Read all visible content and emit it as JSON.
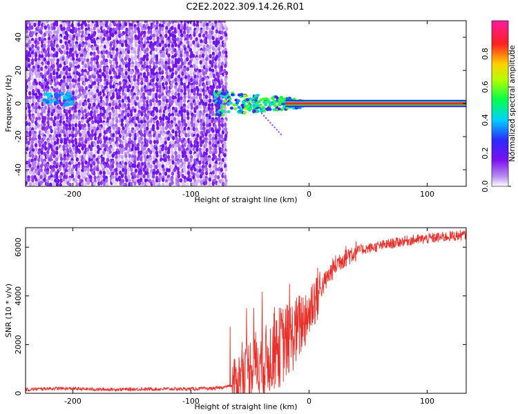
{
  "title": "C2E2.2022.309.14.26.R01",
  "chart_data": [
    {
      "type": "heatmap",
      "xlabel": "Height of straight line (km)",
      "ylabel": "Frequency (Hz)",
      "xlim": [
        -240,
        133
      ],
      "ylim": [
        -50,
        50
      ],
      "xticks": [
        -200,
        -100,
        0,
        100
      ],
      "yticks": [
        -40,
        -20,
        0,
        20,
        40
      ],
      "colorbar": {
        "label": "Normalized spectral amplitude",
        "range": [
          0,
          1
        ],
        "ticks": [
          "0.0",
          "0.2",
          "0.4",
          "0.6",
          "0.8"
        ],
        "colormap": "rainbow (white→purple→blue→cyan→green→yellow→red→magenta)"
      },
      "regions": [
        {
          "desc": "noise",
          "x_range": [
            -240,
            -70
          ],
          "freq_range": [
            -50,
            50
          ],
          "amplitude": "low (~0.05–0.15)"
        },
        {
          "desc": "early blob",
          "x_range": [
            -225,
            -200
          ],
          "freq_range": [
            -2,
            7
          ],
          "amplitude": "~0.3–0.45"
        },
        {
          "desc": "signal onset",
          "x_range": [
            -80,
            -10
          ],
          "freq_range": [
            -8,
            8
          ],
          "amplitude": "~0.2–0.6"
        },
        {
          "desc": "steady tone",
          "x_range": [
            -20,
            133
          ],
          "freq": 0,
          "amplitude": "~0.9–1.0"
        }
      ]
    },
    {
      "type": "line",
      "xlabel": "Height of straight line (km)",
      "ylabel": "SNR (10 * v/v)",
      "xlim": [
        -240,
        133
      ],
      "ylim": [
        0,
        6800
      ],
      "xticks": [
        -200,
        -100,
        0,
        100
      ],
      "yticks": [
        0,
        2000,
        4000,
        6000
      ],
      "series": [
        {
          "color": "#e8302a",
          "x": [
            -240,
            -220,
            -200,
            -180,
            -160,
            -140,
            -120,
            -100,
            -80,
            -65,
            -55,
            -50,
            -45,
            -40,
            -35,
            -30,
            -25,
            -20,
            -15,
            -10,
            -5,
            0,
            5,
            10,
            15,
            20,
            25,
            30,
            40,
            50,
            60,
            70,
            80,
            90,
            100,
            110,
            120,
            133
          ],
          "y": [
            150,
            200,
            190,
            160,
            160,
            170,
            180,
            180,
            200,
            300,
            900,
            1100,
            1300,
            1200,
            1400,
            1700,
            1900,
            2100,
            2300,
            2600,
            3000,
            3400,
            3900,
            4300,
            4700,
            5100,
            5400,
            5600,
            5850,
            5950,
            6050,
            6150,
            6250,
            6300,
            6350,
            6400,
            6450,
            6500
          ]
        }
      ]
    }
  ]
}
